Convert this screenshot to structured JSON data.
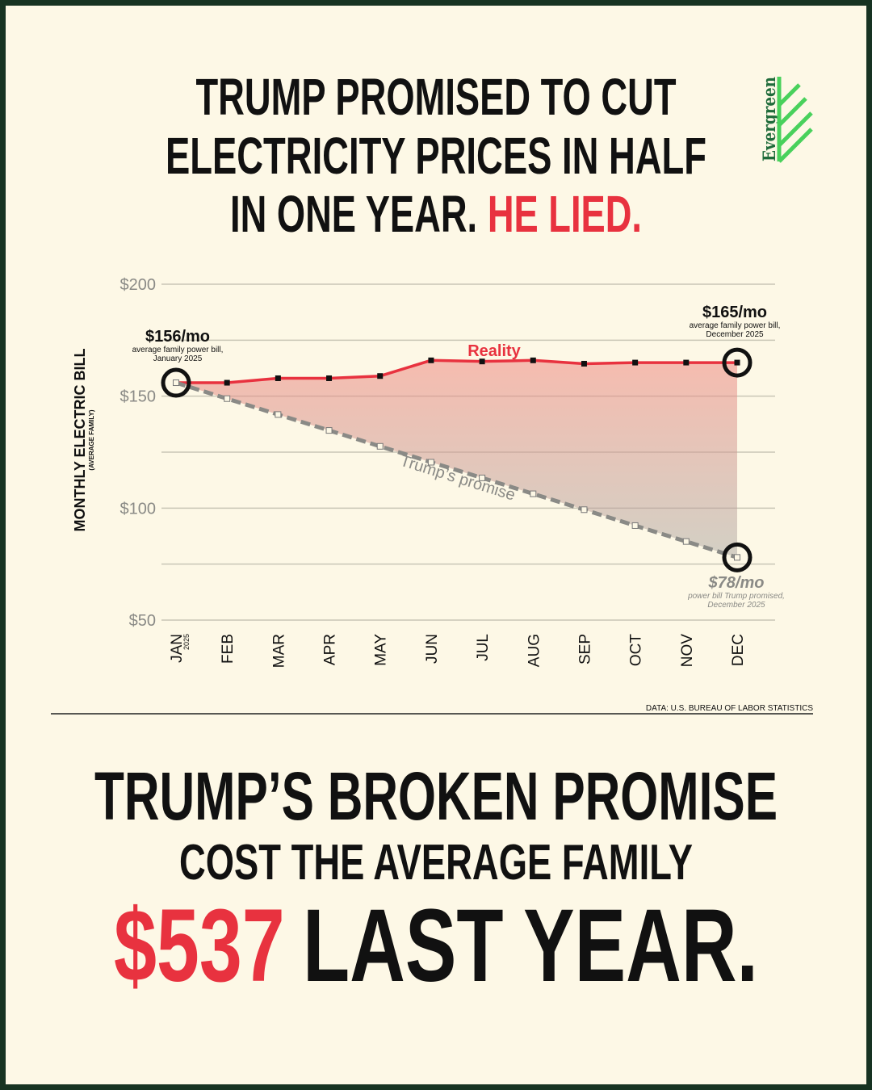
{
  "chart_data": {
    "type": "line",
    "title": {
      "line1": "TRUMP PROMISED TO CUT",
      "line2": "ELECTRICITY PRICES IN HALF",
      "line3": "IN ONE YEAR.",
      "highlight": "HE LIED."
    },
    "logo": "Evergreen",
    "y_label": "MONTHLY ELECTRIC BILL",
    "y_sublabel": "(AVERAGE FAMILY)",
    "categories": [
      "JAN",
      "FEB",
      "MAR",
      "APR",
      "MAY",
      "JUN",
      "JUL",
      "AUG",
      "SEP",
      "OCT",
      "NOV",
      "DEC"
    ],
    "first_category_year": "2025",
    "series": [
      {
        "name": "Reality",
        "color": "#e8323f",
        "dashed": false,
        "values": [
          156,
          156,
          158,
          158,
          159,
          166,
          165.5,
          166,
          164.5,
          165,
          165,
          165
        ]
      },
      {
        "name": "Trump’s promise",
        "color": "#8a8a86",
        "dashed": true,
        "values": [
          156,
          148.9,
          141.8,
          134.7,
          127.6,
          120.5,
          113.5,
          106.4,
          99.3,
          92.2,
          85.1,
          78
        ]
      }
    ],
    "annotations": [
      {
        "text": "$156/mo",
        "note": [
          "average family power bill,",
          "January 2025"
        ]
      },
      {
        "text": "$165/mo",
        "note": [
          "average family power bill,",
          "December 2025"
        ]
      },
      {
        "text": "$78/mo",
        "note": [
          "power bill Trump promised,",
          "December 2025"
        ]
      }
    ],
    "ylim": [
      50,
      200
    ],
    "yticks": [
      {
        "value": 50,
        "label": "$50"
      },
      {
        "value": 100,
        "label": "$100"
      },
      {
        "value": 150,
        "label": "$150"
      },
      {
        "value": 200,
        "label": "$200"
      }
    ],
    "minor_yticks": [
      75,
      125,
      175
    ],
    "grid": true,
    "source": "DATA: U.S. BUREAU OF LABOR STATISTICS",
    "bottom": {
      "line1": "TRUMP’S BROKEN PROMISE",
      "line2": "COST THE AVERAGE FAMILY",
      "highlight": "$537",
      "line3": "LAST YEAR."
    }
  }
}
